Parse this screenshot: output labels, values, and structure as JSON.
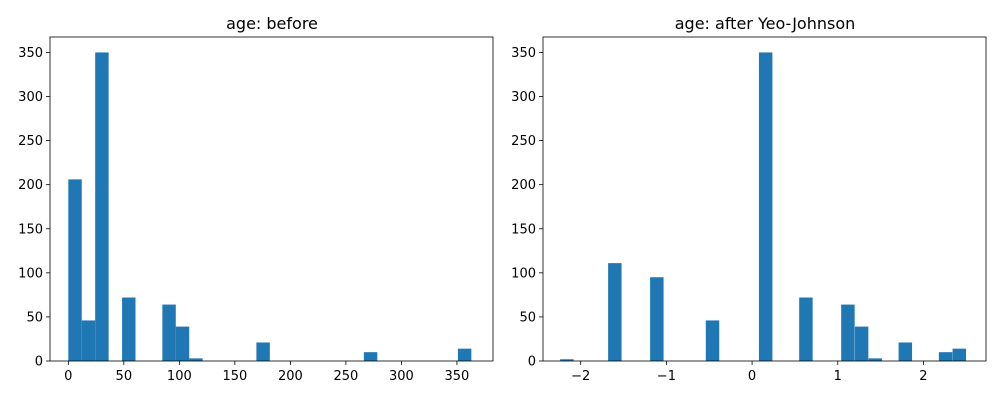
{
  "chart_data": [
    {
      "type": "bar",
      "title": "age: before",
      "xlabel": "",
      "ylabel": "",
      "xlim": [
        -16.5,
        382.5
      ],
      "ylim": [
        0,
        367.5
      ],
      "xticks": [
        0,
        50,
        100,
        150,
        200,
        250,
        300,
        350
      ],
      "xtick_labels": [
        "0",
        "50",
        "100",
        "150",
        "200",
        "250",
        "300",
        "350"
      ],
      "yticks": [
        0,
        50,
        100,
        150,
        200,
        250,
        300,
        350
      ],
      "ytick_labels": [
        "0",
        "50",
        "100",
        "150",
        "200",
        "250",
        "300",
        "350"
      ],
      "bin_width": 12.1,
      "bars": [
        {
          "x0": 0,
          "value": 206
        },
        {
          "x0": 12.1,
          "value": 46
        },
        {
          "x0": 24.2,
          "value": 350
        },
        {
          "x0": 48.4,
          "value": 72
        },
        {
          "x0": 84.7,
          "value": 64
        },
        {
          "x0": 96.8,
          "value": 39
        },
        {
          "x0": 108.9,
          "value": 3
        },
        {
          "x0": 169.4,
          "value": 21
        },
        {
          "x0": 266.2,
          "value": 10
        },
        {
          "x0": 350.9,
          "value": 14
        }
      ],
      "bar_color": "#1f77b4",
      "grid": false
    },
    {
      "type": "bar",
      "title": "age: after Yeo-Johnson",
      "xlabel": "",
      "ylabel": "",
      "xlim": [
        -2.44,
        2.73
      ],
      "ylim": [
        0,
        367.5
      ],
      "xticks": [
        -2,
        -1,
        0,
        1,
        2
      ],
      "xtick_labels": [
        "−2",
        "−1",
        "0",
        "1",
        "2"
      ],
      "yticks": [
        0,
        50,
        100,
        150,
        200,
        250,
        300,
        350
      ],
      "ytick_labels": [
        "0",
        "50",
        "100",
        "150",
        "200",
        "250",
        "300",
        "350"
      ],
      "bin_width": 0.157,
      "bars": [
        {
          "x0": -2.24,
          "value": 2
        },
        {
          "x0": -1.68,
          "value": 111
        },
        {
          "x0": -1.19,
          "value": 95
        },
        {
          "x0": -0.54,
          "value": 46
        },
        {
          "x0": 0.08,
          "value": 350
        },
        {
          "x0": 0.55,
          "value": 72
        },
        {
          "x0": 1.04,
          "value": 64
        },
        {
          "x0": 1.2,
          "value": 39
        },
        {
          "x0": 1.36,
          "value": 3
        },
        {
          "x0": 1.71,
          "value": 21
        },
        {
          "x0": 2.18,
          "value": 10
        },
        {
          "x0": 2.34,
          "value": 14
        }
      ],
      "bar_color": "#1f77b4",
      "grid": false
    }
  ]
}
